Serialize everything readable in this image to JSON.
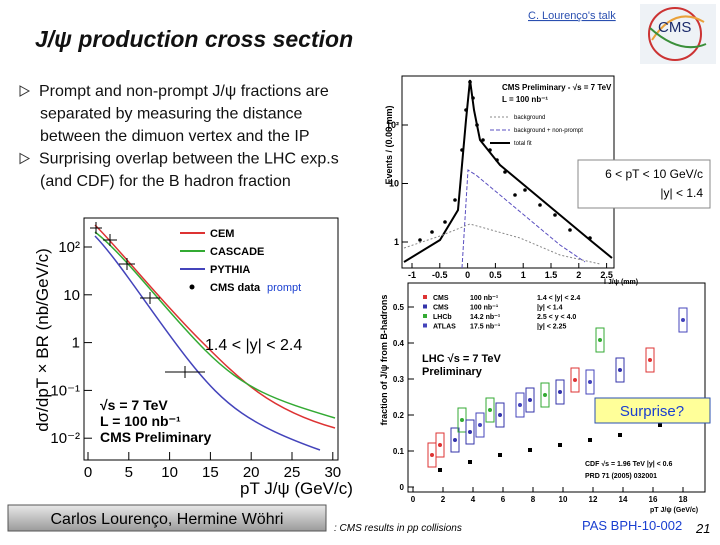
{
  "header": {
    "title": "J/ψ production cross section",
    "talk_link": "C. Lourenço's talk"
  },
  "bullets": [
    [
      "Prompt and non-prompt J/ψ fractions are",
      "separated by measuring the distance",
      "between the dimuon vertex and the IP"
    ],
    [
      "Surprising overlap between the LHC exp.s",
      "(and CDF) for the B hadron fraction"
    ]
  ],
  "kinematic_box": [
    "6 < pT < 10 GeV/c",
    "|y| < 1.4"
  ],
  "surprise": "Surprise?",
  "plot_cross_section": {
    "y_label": "dσ/dpT × BR (nb/GeV/c)",
    "x_label": "pT J/ψ (GeV/c)",
    "x_ticks": [
      "0",
      "5",
      "10",
      "15",
      "20",
      "25",
      "30"
    ],
    "y_ticks": [
      "10²",
      "10",
      "1",
      "10⁻¹",
      "10⁻²"
    ],
    "legend": [
      "CEM",
      "CASCADE",
      "PYTHIA",
      "CMS data"
    ],
    "legend_note": "prompt",
    "rapidity": "1.4 < |y| < 2.4",
    "info": [
      "√s = 7 TeV",
      "L = 100 nb⁻¹",
      "CMS Preliminary"
    ]
  },
  "plot_lifetime": {
    "y_label": "Events / (0.06 mm)",
    "x_label": "l J/ψ (mm)",
    "title": "CMS Preliminary - √s = 7 TeV",
    "lumi": "L = 100 nb⁻¹",
    "legend": [
      "background",
      "background + non-prompt",
      "total fit"
    ],
    "x_ticks": [
      "-1",
      "-0.5",
      "0",
      "0.5",
      "1",
      "1.5",
      "2",
      "2.5"
    ],
    "y_ticks": [
      "10²",
      "10",
      "1"
    ]
  },
  "plot_fraction": {
    "y_label": "fraction of J/ψ from B-hadrons",
    "x_label": "pT J/ψ (GeV/c)",
    "y_ticks": [
      "0.5",
      "0.4",
      "0.3",
      "0.2",
      "0.1",
      "0"
    ],
    "x_ticks": [
      "0",
      "2",
      "4",
      "6",
      "8",
      "10",
      "12",
      "14",
      "16",
      "18"
    ],
    "legend": [
      [
        "CMS",
        "100 nb⁻¹",
        "1.4 < |y| < 2.4"
      ],
      [
        "CMS",
        "100 nb⁻¹",
        "|y| < 1.4"
      ],
      [
        "LHCb",
        "14.2 nb⁻¹",
        "2.5 < y < 4.0"
      ],
      [
        "ATLAS",
        "17.5 nb⁻¹",
        "|y| < 2.25"
      ]
    ],
    "lhc_label": [
      "LHC  √s = 7 TeV",
      "Preliminary"
    ],
    "cdf": [
      "CDF  √s = 1.96 TeV  |y| < 0.6",
      "PRD 71 (2005) 032001"
    ]
  },
  "footer": {
    "authors": "Carlos Lourenço, Hermine Wöhri",
    "subject": ": CMS results in pp collisions",
    "reference": "PAS BPH-10-002",
    "page": "21"
  }
}
